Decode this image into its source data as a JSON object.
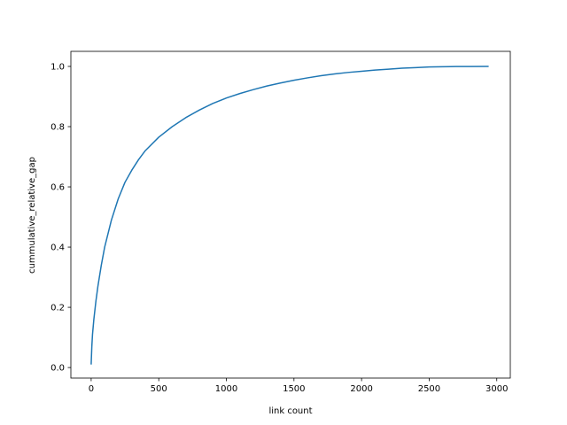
{
  "chart_data": {
    "type": "line",
    "title": "",
    "xlabel": "link count",
    "ylabel": "cummulative_relative_gap",
    "xlim": [
      -150,
      3100
    ],
    "ylim": [
      -0.035,
      1.05
    ],
    "xticks": [
      0,
      500,
      1000,
      1500,
      2000,
      2500,
      3000
    ],
    "xtick_labels": [
      "0",
      "500",
      "1000",
      "1500",
      "2000",
      "2500",
      "3000"
    ],
    "yticks": [
      0.0,
      0.2,
      0.4,
      0.6,
      0.8,
      1.0
    ],
    "ytick_labels": [
      "0.0",
      "0.2",
      "0.4",
      "0.6",
      "0.8",
      "1.0"
    ],
    "grid": false,
    "legend": "none",
    "series": [
      {
        "color": "#1f77b4",
        "x": [
          0,
          5,
          10,
          20,
          35,
          50,
          75,
          100,
          150,
          200,
          250,
          300,
          350,
          400,
          500,
          600,
          700,
          800,
          900,
          1000,
          1100,
          1200,
          1300,
          1400,
          1500,
          1600,
          1700,
          1800,
          1900,
          2000,
          2100,
          2200,
          2300,
          2400,
          2500,
          2600,
          2700,
          2800,
          2940
        ],
        "y": [
          0.01,
          0.07,
          0.11,
          0.16,
          0.22,
          0.27,
          0.34,
          0.4,
          0.49,
          0.56,
          0.615,
          0.655,
          0.69,
          0.72,
          0.765,
          0.8,
          0.83,
          0.855,
          0.877,
          0.895,
          0.91,
          0.923,
          0.935,
          0.945,
          0.954,
          0.962,
          0.969,
          0.975,
          0.98,
          0.984,
          0.988,
          0.991,
          0.994,
          0.996,
          0.998,
          0.999,
          0.9995,
          0.9998,
          1.0
        ]
      }
    ]
  }
}
